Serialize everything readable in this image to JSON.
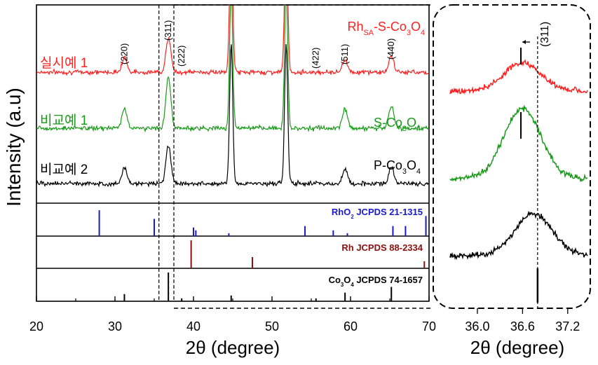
{
  "chart_data": [
    {
      "type": "line",
      "panel": "main",
      "xlabel": "2θ (degree)",
      "ylabel": "Intensity (a.u)",
      "xlim": [
        20,
        70
      ],
      "xticks": [
        "20",
        "30",
        "40",
        "50",
        "60",
        "70"
      ],
      "series": [
        {
          "name": "Rh",
          "name_sub": "SA",
          "name_tail": "-S-Co",
          "name_sub2": "3",
          "name_end": "O",
          "name_sub3": "4",
          "side_label": "실시예 1",
          "color": "#ff2020",
          "peaks": [
            [
              31.2,
              22
            ],
            [
              36.8,
              48
            ],
            [
              44.8,
              200
            ],
            [
              51.8,
              200
            ],
            [
              59.3,
              18
            ],
            [
              65.2,
              22
            ]
          ]
        },
        {
          "name": "S-Co",
          "name_sub": "3",
          "name_end": "O",
          "name_sub2": "4",
          "side_label": "비교예 1",
          "color": "#1a9a1a",
          "peaks": [
            [
              31.2,
              28
            ],
            [
              36.8,
              72
            ],
            [
              44.8,
              200
            ],
            [
              51.8,
              200
            ],
            [
              59.3,
              28
            ],
            [
              65.2,
              32
            ]
          ]
        },
        {
          "name": "P-Co",
          "name_sub": "3",
          "name_end": "O",
          "name_sub2": "4",
          "side_label": "비교예 2",
          "color": "#000000",
          "peaks": [
            [
              31.2,
              22
            ],
            [
              36.8,
              55
            ],
            [
              44.8,
              200
            ],
            [
              51.8,
              200
            ],
            [
              59.3,
              20
            ],
            [
              65.2,
              24
            ]
          ]
        }
      ],
      "peak_labels": [
        {
          "hkl": "(220)",
          "x": 31.2
        },
        {
          "hkl": "(311)",
          "x": 36.8
        },
        {
          "hkl": "(222)",
          "x": 38.5
        },
        {
          "hkl": "(422)",
          "x": 55.6
        },
        {
          "hkl": "(511)",
          "x": 59.3
        },
        {
          "hkl": "(440)",
          "x": 65.2
        }
      ],
      "references": [
        {
          "label": "RhO",
          "label_sub": "2",
          "label_tail": " JCPDS 21-1315",
          "color": "#1a1acc",
          "lines": [
            [
              28.0,
              0.9
            ],
            [
              35.0,
              0.6
            ],
            [
              40.0,
              0.3
            ],
            [
              40.3,
              0.2
            ],
            [
              44.5,
              0.1
            ],
            [
              54.2,
              0.35
            ],
            [
              57.8,
              0.2
            ],
            [
              59.6,
              0.1
            ],
            [
              65.4,
              0.35
            ],
            [
              67.0,
              0.35
            ],
            [
              69.6,
              0.7
            ]
          ]
        },
        {
          "label": "Rh JCPDS 88-2334",
          "color": "#8b1010",
          "lines": [
            [
              39.7,
              1.0
            ],
            [
              47.5,
              0.4
            ],
            [
              69.4,
              0.25
            ]
          ]
        },
        {
          "label": "Co",
          "label_sub": "3",
          "label_mid": "O",
          "label_sub2": "4",
          "label_tail": " JCPDS 74-1657",
          "color": "#000000",
          "lines": [
            [
              31.2,
              0.25
            ],
            [
              36.8,
              1.0
            ],
            [
              38.5,
              0.1
            ],
            [
              44.8,
              0.2
            ],
            [
              55.6,
              0.1
            ],
            [
              59.3,
              0.3
            ],
            [
              65.2,
              0.5
            ]
          ]
        }
      ],
      "dashed_lines_x": [
        35.6,
        37.5
      ]
    },
    {
      "type": "line",
      "panel": "inset",
      "xlabel": "2θ (degree)",
      "xlim": [
        35.6,
        37.5
      ],
      "xticks": [
        "36.0",
        "36.6",
        "37.2"
      ],
      "peak_label": "(311)",
      "dashed_line_x": 36.8,
      "series": [
        {
          "name": "Rh-SA-S-Co3O4",
          "color": "#ff2020",
          "center": 36.6,
          "height": 0.3
        },
        {
          "name": "S-Co3O4",
          "color": "#1a9a1a",
          "center": 36.6,
          "height": 0.9
        },
        {
          "name": "P-Co3O4",
          "color": "#000000",
          "center": 36.75,
          "height": 0.55
        }
      ],
      "reference_line_x": 36.8
    }
  ]
}
